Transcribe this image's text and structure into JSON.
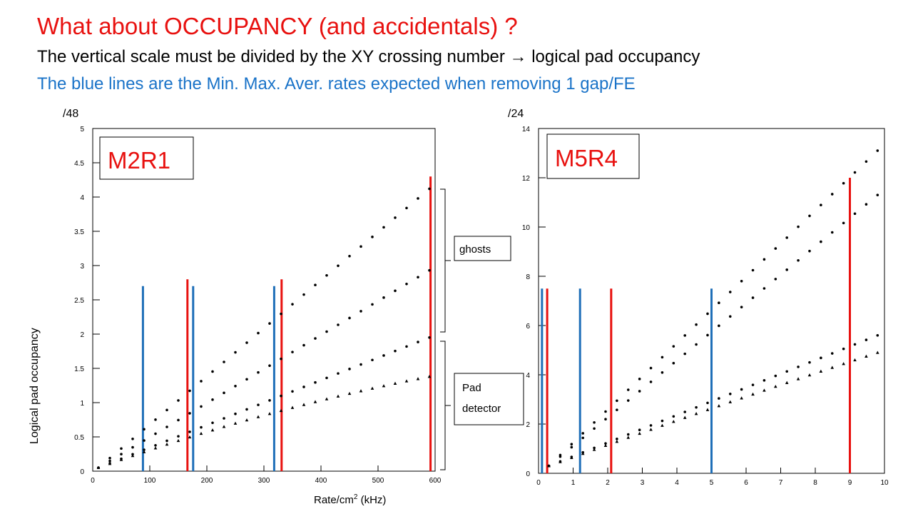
{
  "slide": {
    "title": "What about OCCUPANCY (and accidentals) ?",
    "subtitle": "The vertical scale must be divided by the XY crossing number → logical pad occupancy",
    "note": "The blue lines are the Min. Max. Aver. rates expected when removing 1 gap/FE"
  },
  "colors": {
    "title": "#e8110f",
    "note": "#1a73c8",
    "blue_line": "#1f6fb8",
    "red_line": "#e8110f",
    "points": "#000000"
  },
  "annotations": {
    "ghosts": "ghosts",
    "pad_line1": "Pad",
    "pad_line2": "detector"
  },
  "chart_data": [
    {
      "type": "scatter",
      "label": "M2R1",
      "unit_label": "/48",
      "xlabel": "Rate/cm2 (kHz)",
      "ylabel": "Logical pad occupancy",
      "xlim": [
        0,
        600
      ],
      "ylim": [
        0,
        5
      ],
      "xticks": [
        0,
        100,
        200,
        300,
        400,
        500,
        600
      ],
      "yticks": [
        0,
        0.5,
        1,
        1.5,
        2,
        2.5,
        3,
        3.5,
        4,
        4.5,
        5
      ],
      "series": [
        {
          "marker": "circle",
          "x": [
            10,
            590
          ],
          "y": [
            0.05,
            4.12
          ],
          "n": 30
        },
        {
          "marker": "circle",
          "x": [
            10,
            590
          ],
          "y": [
            0.05,
            2.93
          ],
          "n": 30
        },
        {
          "marker": "circle",
          "x": [
            10,
            590
          ],
          "y": [
            0.05,
            1.95
          ],
          "n": 30
        },
        {
          "marker": "triangle",
          "x": [
            10,
            590
          ],
          "y": [
            0.05,
            1.38
          ],
          "n": 30,
          "curve": 0.3
        }
      ],
      "vlines": [
        {
          "color": "blue",
          "x": 88,
          "ymax": 2.7
        },
        {
          "color": "blue",
          "x": 176,
          "ymax": 2.7
        },
        {
          "color": "blue",
          "x": 318,
          "ymax": 2.7
        },
        {
          "color": "red",
          "x": 166,
          "ymax": 2.8
        },
        {
          "color": "red",
          "x": 331,
          "ymax": 2.8
        },
        {
          "color": "red",
          "x": 592,
          "ymax": 4.3
        }
      ]
    },
    {
      "type": "scatter",
      "label": "M5R4",
      "unit_label": "/24",
      "xlim": [
        0,
        10
      ],
      "ylim": [
        0,
        14
      ],
      "xticks": [
        0,
        1,
        2,
        3,
        4,
        5,
        6,
        7,
        8,
        9,
        10
      ],
      "yticks": [
        0,
        2,
        4,
        6,
        8,
        10,
        12,
        14
      ],
      "series": [
        {
          "marker": "circle",
          "x": [
            0.3,
            9.8
          ],
          "y": [
            0.3,
            13.1
          ],
          "n": 30
        },
        {
          "marker": "circle",
          "x": [
            0.3,
            9.8
          ],
          "y": [
            0.3,
            11.3
          ],
          "n": 30
        },
        {
          "marker": "circle",
          "x": [
            0.3,
            9.8
          ],
          "y": [
            0.3,
            5.6
          ],
          "n": 30
        },
        {
          "marker": "triangle",
          "x": [
            0.3,
            9.8
          ],
          "y": [
            0.3,
            4.9
          ],
          "n": 30,
          "curve": 0.05
        }
      ],
      "vlines": [
        {
          "color": "blue",
          "x": 0.1,
          "ymax": 7.5
        },
        {
          "color": "blue",
          "x": 1.2,
          "ymax": 7.5
        },
        {
          "color": "blue",
          "x": 5.0,
          "ymax": 7.5
        },
        {
          "color": "red",
          "x": 0.25,
          "ymax": 7.5
        },
        {
          "color": "red",
          "x": 2.1,
          "ymax": 7.5
        },
        {
          "color": "red",
          "x": 9.0,
          "ymax": 12.0
        }
      ]
    }
  ]
}
